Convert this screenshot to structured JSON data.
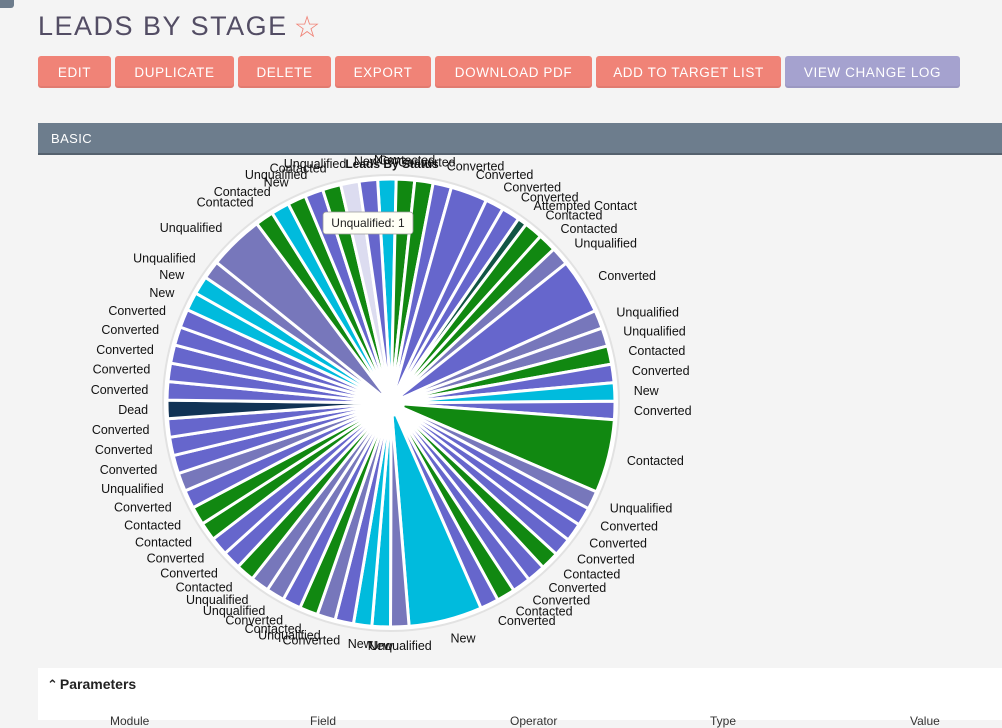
{
  "header": {
    "title": "LEADS BY STAGE",
    "favorite_icon": "star-outline-icon"
  },
  "toolbar": {
    "buttons": [
      {
        "label": "EDIT"
      },
      {
        "label": "DUPLICATE"
      },
      {
        "label": "DELETE"
      },
      {
        "label": "EXPORT"
      },
      {
        "label": "DOWNLOAD PDF"
      },
      {
        "label": "ADD TO TARGET LIST"
      },
      {
        "label": "VIEW CHANGE LOG"
      }
    ]
  },
  "panel": {
    "title": "BASIC"
  },
  "tooltip": {
    "text": "Unqualified: 1"
  },
  "chart_data": {
    "type": "pie",
    "title": "Leads By Status",
    "colors": {
      "Converted": "#6666cc",
      "Contacted": "#118811",
      "Unqualified": "#7777bb",
      "New": "#00bbdd",
      "Dead": "#113355",
      "Attempted Contact": "#115544",
      "Unqualified (highlighted)": "#dcdcf0"
    },
    "slices": [
      {
        "label": "New",
        "value": 1,
        "color": "New"
      },
      {
        "label": "Contacted",
        "value": 1,
        "color": "Contacted"
      },
      {
        "label": "Converted",
        "value": 1,
        "color": "Contacted"
      },
      {
        "label": "Converted",
        "value": 1,
        "color": "Converted"
      },
      {
        "label": "Converted",
        "value": 2,
        "color": "Converted"
      },
      {
        "label": "Converted",
        "value": 1,
        "color": "Converted"
      },
      {
        "label": "Converted",
        "value": 1,
        "color": "Converted"
      },
      {
        "label": "Attempted Contact",
        "value": 0.5,
        "color": "Attempted Contact"
      },
      {
        "label": "Contacted",
        "value": 1,
        "color": "Contacted"
      },
      {
        "label": "Contacted",
        "value": 1,
        "color": "Contacted"
      },
      {
        "label": "Unqualified",
        "value": 1,
        "color": "Unqualified"
      },
      {
        "label": "Converted",
        "value": 3,
        "color": "Converted"
      },
      {
        "label": "Unqualified",
        "value": 1,
        "color": "Unqualified"
      },
      {
        "label": "Unqualified",
        "value": 1,
        "color": "Unqualified"
      },
      {
        "label": "Contacted",
        "value": 1,
        "color": "Contacted"
      },
      {
        "label": "Converted",
        "value": 1,
        "color": "Converted"
      },
      {
        "label": "New",
        "value": 1,
        "color": "New"
      },
      {
        "label": "Converted",
        "value": 1,
        "color": "Converted"
      },
      {
        "label": "Contacted",
        "value": 4,
        "color": "Contacted"
      },
      {
        "label": "Unqualified",
        "value": 1,
        "color": "Unqualified"
      },
      {
        "label": "Converted",
        "value": 1,
        "color": "Converted"
      },
      {
        "label": "Converted",
        "value": 1,
        "color": "Converted"
      },
      {
        "label": "Converted",
        "value": 1,
        "color": "Converted"
      },
      {
        "label": "Contacted",
        "value": 1,
        "color": "Contacted"
      },
      {
        "label": "Converted",
        "value": 1,
        "color": "Converted"
      },
      {
        "label": "Converted",
        "value": 1,
        "color": "Converted"
      },
      {
        "label": "Contacted",
        "value": 1,
        "color": "Contacted"
      },
      {
        "label": "Converted",
        "value": 1,
        "color": "Converted"
      },
      {
        "label": "New",
        "value": 4,
        "color": "New"
      },
      {
        "label": "Unqualified",
        "value": 1,
        "color": "Unqualified"
      },
      {
        "label": "New",
        "value": 1,
        "color": "New"
      },
      {
        "label": "New",
        "value": 1,
        "color": "New"
      },
      {
        "label": "Converted",
        "value": 1,
        "color": "Converted"
      },
      {
        "label": "Unqualified",
        "value": 1,
        "color": "Unqualified"
      },
      {
        "label": "Contacted",
        "value": 1,
        "color": "Contacted"
      },
      {
        "label": "Converted",
        "value": 1,
        "color": "Converted"
      },
      {
        "label": "Unqualified",
        "value": 1,
        "color": "Unqualified"
      },
      {
        "label": "Unqualified",
        "value": 1,
        "color": "Unqualified"
      },
      {
        "label": "Contacted",
        "value": 1,
        "color": "Contacted"
      },
      {
        "label": "Converted",
        "value": 1,
        "color": "Converted"
      },
      {
        "label": "Converted",
        "value": 1,
        "color": "Converted"
      },
      {
        "label": "Contacted",
        "value": 1,
        "color": "Contacted"
      },
      {
        "label": "Contacted",
        "value": 1,
        "color": "Contacted"
      },
      {
        "label": "Converted",
        "value": 1,
        "color": "Converted"
      },
      {
        "label": "Unqualified",
        "value": 1,
        "color": "Unqualified"
      },
      {
        "label": "Converted",
        "value": 1,
        "color": "Converted"
      },
      {
        "label": "Converted",
        "value": 1,
        "color": "Converted"
      },
      {
        "label": "Converted",
        "value": 1,
        "color": "Converted"
      },
      {
        "label": "Dead",
        "value": 1,
        "color": "Dead"
      },
      {
        "label": "Converted",
        "value": 1,
        "color": "Converted"
      },
      {
        "label": "Converted",
        "value": 1,
        "color": "Converted"
      },
      {
        "label": "Converted",
        "value": 1,
        "color": "Converted"
      },
      {
        "label": "Converted",
        "value": 1,
        "color": "Converted"
      },
      {
        "label": "Converted",
        "value": 1,
        "color": "Converted"
      },
      {
        "label": "New",
        "value": 1,
        "color": "New"
      },
      {
        "label": "New",
        "value": 1,
        "color": "New"
      },
      {
        "label": "Unqualified",
        "value": 1,
        "color": "Unqualified"
      },
      {
        "label": "Unqualified",
        "value": 3,
        "color": "Unqualified"
      },
      {
        "label": "Contacted",
        "value": 1,
        "color": "Contacted"
      },
      {
        "label": "Contacted",
        "value": 1,
        "color": "New"
      },
      {
        "label": "New",
        "value": 1,
        "color": "Contacted"
      },
      {
        "label": "Unqualified",
        "value": 1,
        "color": "Converted"
      },
      {
        "label": "Contacted",
        "value": 1,
        "color": "Contacted"
      },
      {
        "label": "Unqualified",
        "value": 1,
        "color": "Unqualified (highlighted)"
      },
      {
        "label": "New",
        "value": 1,
        "color": "Converted"
      }
    ]
  },
  "parameters": {
    "title": "Parameters",
    "columns": [
      "Module",
      "Field",
      "Operator",
      "Type",
      "Value"
    ]
  }
}
